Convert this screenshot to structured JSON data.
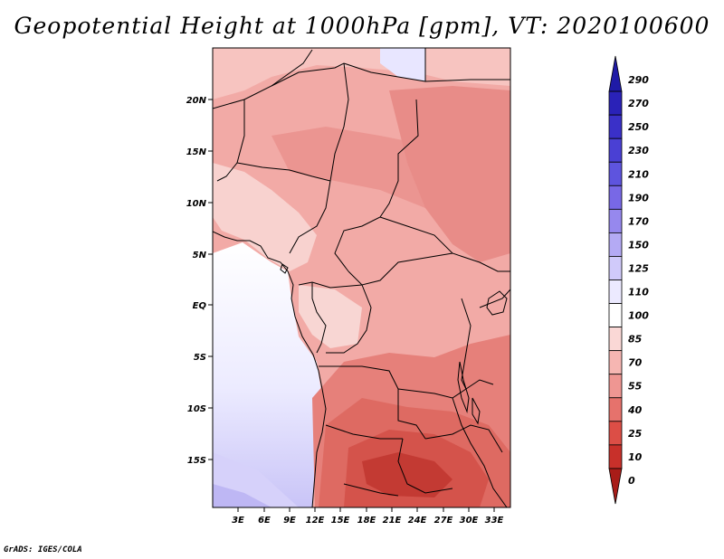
{
  "title": "Geopotential Height at 1000hPa [gpm], VT: 2020100600",
  "credit": "GrADS: IGES/COLA",
  "map": {
    "region": "Central and Southern Africa",
    "lat_range": [
      -20,
      24
    ],
    "lon_range": [
      0,
      35
    ],
    "lat_labels": [
      "20N",
      "15N",
      "10N",
      "5N",
      "EQ",
      "5S",
      "10S",
      "15S"
    ],
    "lon_labels": [
      "3E",
      "6E",
      "9E",
      "12E",
      "15E",
      "18E",
      "21E",
      "24E",
      "27E",
      "30E",
      "33E"
    ]
  },
  "colorbar": {
    "labels": [
      "290",
      "270",
      "250",
      "230",
      "210",
      "190",
      "170",
      "150",
      "125",
      "110",
      "100",
      "85",
      "70",
      "55",
      "40",
      "25",
      "10",
      "0"
    ],
    "colors": [
      "#1f1aa6",
      "#2a22b8",
      "#3a30c8",
      "#4a40d4",
      "#5e54de",
      "#7868e6",
      "#9688ee",
      "#b4aaf4",
      "#d0cafa",
      "#eceaff",
      "#ffffff",
      "#fad8d6",
      "#f6b6b2",
      "#ef9692",
      "#e6726c",
      "#dc4e46",
      "#c8302a",
      "#a81c18"
    ]
  }
}
